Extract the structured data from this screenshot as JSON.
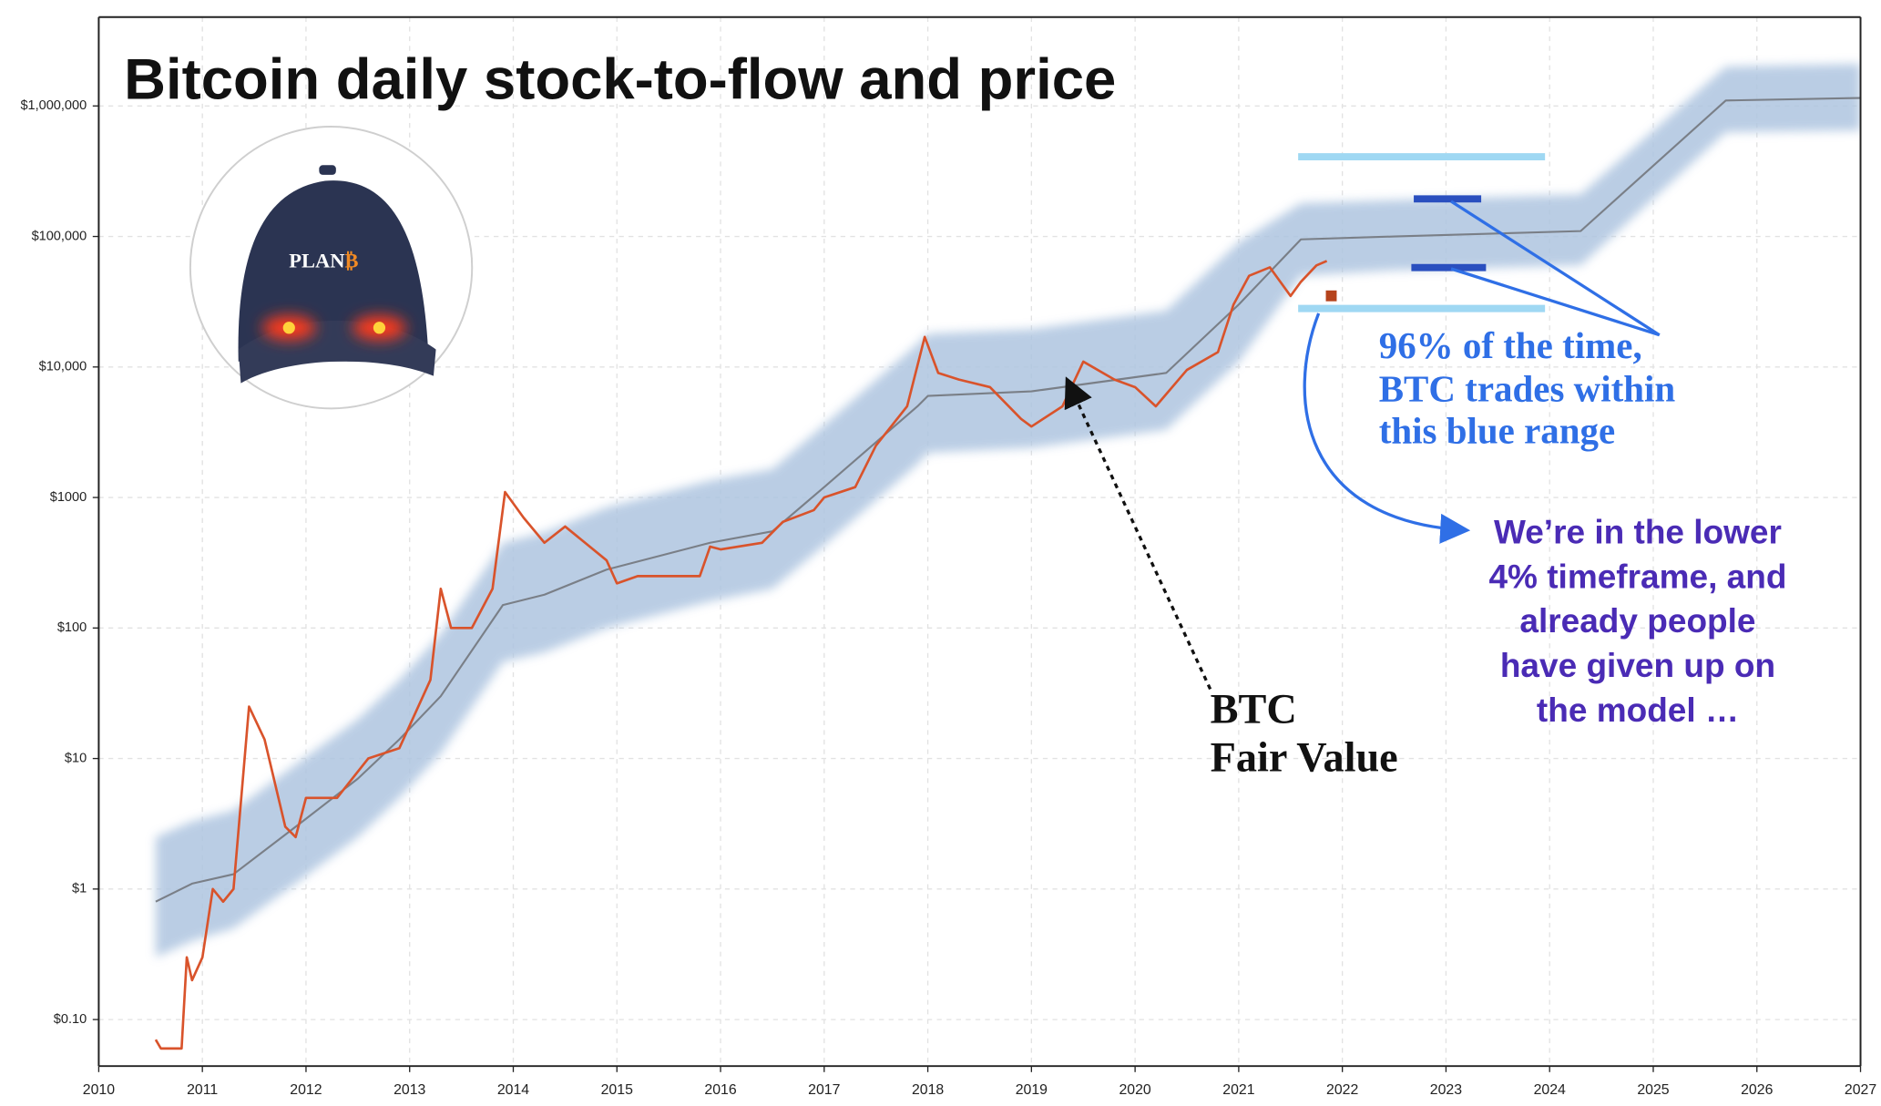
{
  "chart_data": {
    "type": "line",
    "title": "Bitcoin daily stock-to-flow and price",
    "log_y": true,
    "grid": true,
    "xlim": [
      2010,
      2027
    ],
    "xticks": [
      2010,
      2011,
      2012,
      2013,
      2014,
      2015,
      2016,
      2017,
      2018,
      2019,
      2020,
      2021,
      2022,
      2023,
      2024,
      2025,
      2026,
      2027
    ],
    "ylim": [
      0.044,
      4800000
    ],
    "yticks": [
      {
        "value": 0.1,
        "label": "$0.10"
      },
      {
        "value": 1,
        "label": "$1"
      },
      {
        "value": 10,
        "label": "$10"
      },
      {
        "value": 100,
        "label": "$100"
      },
      {
        "value": 1000,
        "label": "$1000"
      },
      {
        "value": 10000,
        "label": "$10,000"
      },
      {
        "value": 100000,
        "label": "$100,000"
      },
      {
        "value": 1000000,
        "label": "$1,000,000"
      }
    ],
    "band": {
      "color": "#aec5e0",
      "x": [
        2010.55,
        2010.9,
        2011.3,
        2011.9,
        2012.5,
        2012.9,
        2013.3,
        2013.9,
        2014.3,
        2014.9,
        2015.9,
        2016.5,
        2017.0,
        2017.9,
        2018.0,
        2019.0,
        2020.3,
        2021.0,
        2021.6,
        2022.5,
        2024.3,
        2025.7,
        2027
      ],
      "upper": [
        2.5,
        3.3,
        4,
        9,
        20,
        40,
        90,
        450,
        540,
        840,
        1350,
        1650,
        3600,
        15000,
        18000,
        19500,
        27000,
        90000,
        180000,
        190000,
        210000,
        2000000,
        2100000
      ],
      "lower": [
        0.3,
        0.4,
        0.5,
        1.1,
        2.5,
        5,
        11,
        55,
        65,
        100,
        160,
        200,
        430,
        1800,
        2200,
        2400,
        3300,
        11000,
        50000,
        55000,
        60000,
        630000,
        650000
      ]
    },
    "series": [
      {
        "color": "#7a7f87",
        "x": [
          2010.55,
          2010.9,
          2011.3,
          2011.9,
          2012.5,
          2012.9,
          2013.3,
          2013.9,
          2014.3,
          2014.9,
          2015.9,
          2016.5,
          2017.0,
          2017.9,
          2018.0,
          2019.0,
          2020.3,
          2021.0,
          2021.6,
          2022.5,
          2024.3,
          2025.7,
          2027
        ],
        "values": [
          0.8,
          1.1,
          1.3,
          3,
          7,
          14,
          30,
          150,
          180,
          280,
          450,
          550,
          1200,
          5000,
          6000,
          6500,
          9000,
          30000,
          95000,
          100000,
          110000,
          1100000,
          1150000
        ]
      },
      {
        "color": "#d9532b",
        "x": [
          2010.55,
          2010.6,
          2010.8,
          2010.85,
          2010.9,
          2011.0,
          2011.1,
          2011.2,
          2011.3,
          2011.45,
          2011.6,
          2011.8,
          2011.9,
          2012.0,
          2012.3,
          2012.6,
          2012.9,
          2013.2,
          2013.3,
          2013.4,
          2013.6,
          2013.8,
          2013.92,
          2014.1,
          2014.3,
          2014.5,
          2014.9,
          2015.0,
          2015.2,
          2015.5,
          2015.8,
          2015.9,
          2016.0,
          2016.4,
          2016.6,
          2016.9,
          2017.0,
          2017.3,
          2017.5,
          2017.8,
          2017.97,
          2018.1,
          2018.3,
          2018.6,
          2018.9,
          2019.0,
          2019.3,
          2019.5,
          2019.8,
          2020.0,
          2020.2,
          2020.5,
          2020.8,
          2020.95,
          2021.1,
          2021.3,
          2021.5,
          2021.6,
          2021.75,
          2021.85
        ],
        "values": [
          0.07,
          0.06,
          0.06,
          0.3,
          0.2,
          0.3,
          1,
          0.8,
          1,
          25,
          14,
          3,
          2.5,
          5,
          5,
          10,
          12,
          40,
          200,
          100,
          100,
          200,
          1100,
          700,
          450,
          600,
          330,
          220,
          250,
          250,
          250,
          420,
          400,
          450,
          650,
          800,
          1000,
          1200,
          2500,
          5000,
          17000,
          9000,
          8000,
          7000,
          4000,
          3500,
          5000,
          11000,
          8000,
          7000,
          5000,
          9500,
          13000,
          30000,
          50000,
          58000,
          35000,
          45000,
          60000,
          65000
        ]
      }
    ],
    "annotations": [
      {
        "lines": [
          "BTC",
          "Fair Value"
        ]
      },
      {
        "lines": [
          "96% of the time,",
          "BTC trades within",
          "this blue range"
        ]
      },
      {
        "lines": [
          "We’re in the lower",
          "4% timeframe, and",
          "already people",
          "have given up on",
          "the model …"
        ]
      }
    ],
    "logo": {
      "text": "PLAN",
      "mark": "₿"
    }
  }
}
